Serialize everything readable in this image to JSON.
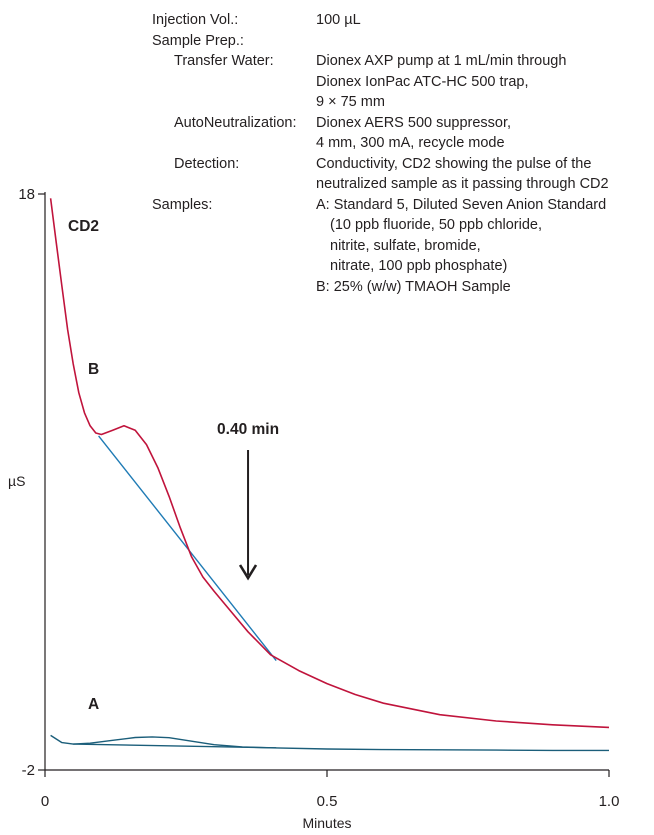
{
  "conditions": [
    {
      "label": "Injection Vol.:",
      "value": [
        "100 µL"
      ],
      "indent": 0
    },
    {
      "label": "Sample Prep.:",
      "value": [],
      "indent": 0
    },
    {
      "label": "Transfer Water:",
      "value": [
        "Dionex AXP pump at 1 mL/min through",
        "Dionex IonPac ATC-HC 500 trap,",
        "9 × 75 mm"
      ],
      "indent": 1
    },
    {
      "label": "AutoNeutralization:",
      "value": [
        "Dionex AERS 500 suppressor,",
        "4 mm, 300 mA, recycle mode"
      ],
      "indent": 1
    },
    {
      "label": "Detection:",
      "value": [
        "Conductivity, CD2 showing the pulse of the",
        "neutralized sample as it passing through CD2"
      ],
      "indent": 1
    },
    {
      "label": "Samples:",
      "value": [
        "A: Standard 5, Diluted Seven Anion Standard",
        "(10 ppb fluoride, 50 ppb chloride,",
        "nitrite, sulfate, bromide,",
        "nitrate, 100 ppb phosphate)",
        "B: 25% (w/w) TMAOH Sample"
      ],
      "indent": 0
    }
  ],
  "chart_data": {
    "type": "line",
    "xlabel": "Minutes",
    "ylabel": "µS",
    "xlim": [
      0,
      1.0
    ],
    "ylim": [
      -2,
      18
    ],
    "x_ticks": [
      "0",
      "0.5",
      "1.0"
    ],
    "y_ticks": [
      "18",
      "-2"
    ],
    "detector_label": "CD2",
    "annotation": {
      "text": "0.40 min",
      "x": 0.36
    },
    "colors": {
      "trace_b": "#c0143c",
      "baseline": "#1f7bb5",
      "trace_a": "#1b5e7a",
      "axis": "#231f20"
    },
    "series": [
      {
        "name": "B",
        "x": [
          0.01,
          0.02,
          0.03,
          0.04,
          0.05,
          0.06,
          0.07,
          0.08,
          0.09,
          0.1,
          0.12,
          0.14,
          0.16,
          0.18,
          0.2,
          0.22,
          0.24,
          0.26,
          0.28,
          0.3,
          0.33,
          0.36,
          0.4,
          0.45,
          0.5,
          0.55,
          0.6,
          0.7,
          0.8,
          0.9,
          1.0
        ],
        "y": [
          17.85,
          16.3,
          14.8,
          13.3,
          12.1,
          11.1,
          10.4,
          9.95,
          9.7,
          9.65,
          9.8,
          9.95,
          9.8,
          9.3,
          8.5,
          7.5,
          6.4,
          5.4,
          4.7,
          4.2,
          3.5,
          2.8,
          2.0,
          1.45,
          1.0,
          0.62,
          0.32,
          -0.08,
          -0.3,
          -0.43,
          -0.52
        ]
      },
      {
        "name": "B baseline",
        "x": [
          0.095,
          0.41
        ],
        "y": [
          9.6,
          1.8
        ]
      },
      {
        "name": "A",
        "x": [
          0.01,
          0.03,
          0.05,
          0.08,
          0.12,
          0.16,
          0.19,
          0.22,
          0.26,
          0.3,
          0.35,
          0.4,
          0.5,
          0.6,
          0.7,
          0.8,
          0.9,
          1.0
        ],
        "y": [
          -0.8,
          -1.05,
          -1.1,
          -1.07,
          -0.97,
          -0.87,
          -0.85,
          -0.88,
          -1.0,
          -1.12,
          -1.2,
          -1.23,
          -1.27,
          -1.29,
          -1.3,
          -1.31,
          -1.32,
          -1.32
        ]
      },
      {
        "name": "A baseline",
        "x": [
          0.05,
          0.41
        ],
        "y": [
          -1.1,
          -1.23
        ]
      }
    ]
  }
}
